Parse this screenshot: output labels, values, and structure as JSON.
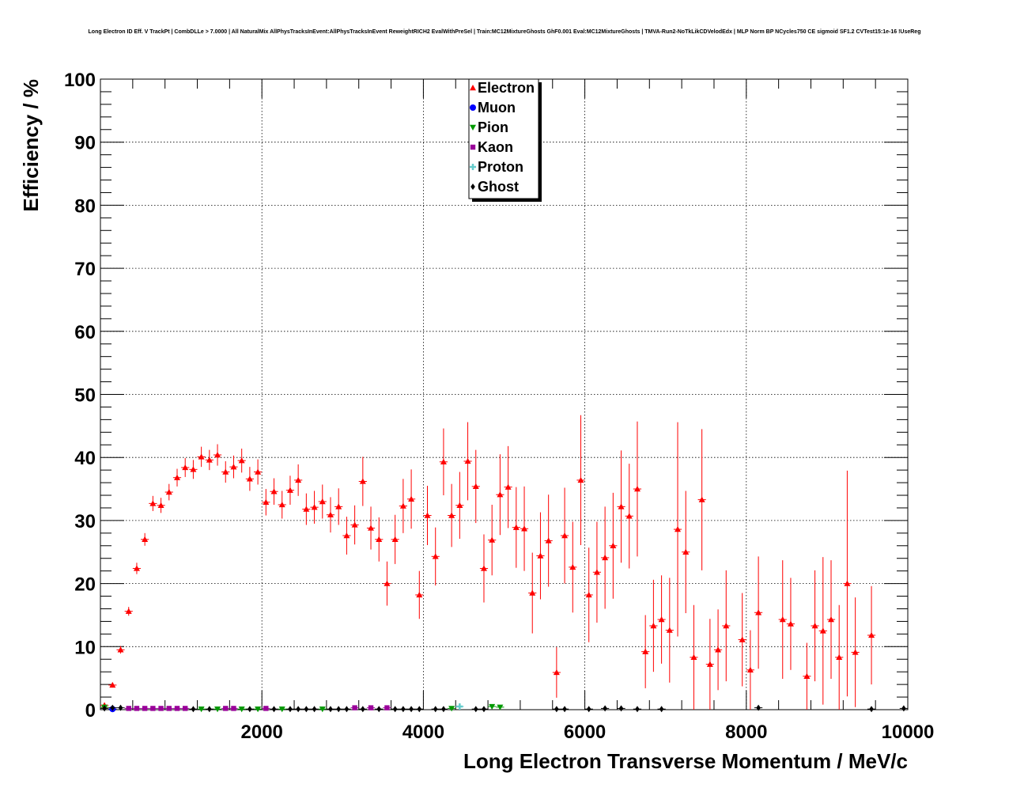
{
  "chart_data": {
    "type": "scatter",
    "title": "Long Electron ID Eff. V TrackPt | CombDLLe > 7.0000 | All NaturalMix AllPhysTracksInEvent:AllPhysTracksInEvent ReweightRICH2 EvalWithPreSel | Train:MC12MixtureGhosts GhF0.001 Eval:MC12MixtureGhosts | TMVA-Run2-NoTkLikCDVelodEdx | MLP Norm BP NCycles750 CE sigmoid SF1.2 CVTest15:1e-16 !UseReg",
    "xlabel": "Long Electron Transverse Momentum / MeV/c",
    "ylabel": "Efficiency / %",
    "xlim": [
      0,
      10000
    ],
    "ylim": [
      0,
      100
    ],
    "xticks": [
      "2000",
      "4000",
      "6000",
      "8000",
      "10000"
    ],
    "yticks": [
      "0",
      "10",
      "20",
      "30",
      "40",
      "50",
      "60",
      "70",
      "80",
      "90",
      "100"
    ],
    "grid": true,
    "legend_position": "top-center",
    "series": [
      {
        "name": "Electron",
        "color": "#ff0000",
        "marker": "triangle-up",
        "points": [
          [
            50,
            0.7,
            0.3
          ],
          [
            150,
            3.9,
            0.4
          ],
          [
            250,
            9.5,
            0.6
          ],
          [
            350,
            15.6,
            0.7
          ],
          [
            450,
            22.4,
            0.9
          ],
          [
            550,
            27.0,
            1.0
          ],
          [
            650,
            32.7,
            1.2
          ],
          [
            750,
            32.4,
            1.2
          ],
          [
            850,
            34.5,
            1.3
          ],
          [
            950,
            36.8,
            1.4
          ],
          [
            1050,
            38.4,
            1.5
          ],
          [
            1150,
            38.1,
            1.5
          ],
          [
            1250,
            40.1,
            1.6
          ],
          [
            1350,
            39.6,
            1.6
          ],
          [
            1450,
            40.4,
            1.7
          ],
          [
            1550,
            37.7,
            1.7
          ],
          [
            1650,
            38.5,
            1.8
          ],
          [
            1750,
            39.5,
            1.9
          ],
          [
            1850,
            36.6,
            1.9
          ],
          [
            1950,
            37.7,
            2.0
          ],
          [
            2050,
            32.9,
            2.1
          ],
          [
            2150,
            34.6,
            2.1
          ],
          [
            2250,
            32.5,
            2.2
          ],
          [
            2350,
            34.8,
            2.3
          ],
          [
            2450,
            36.4,
            2.5
          ],
          [
            2550,
            31.8,
            2.5
          ],
          [
            2650,
            32.1,
            2.6
          ],
          [
            2750,
            33.0,
            2.7
          ],
          [
            2850,
            30.9,
            2.8
          ],
          [
            2950,
            32.2,
            2.9
          ],
          [
            3050,
            27.6,
            3.0
          ],
          [
            3150,
            29.3,
            3.1
          ],
          [
            3250,
            36.2,
            3.9
          ],
          [
            3350,
            28.8,
            3.4
          ],
          [
            3450,
            27.0,
            3.5
          ],
          [
            3550,
            20.0,
            3.5
          ],
          [
            3650,
            27.0,
            3.9
          ],
          [
            3750,
            32.3,
            4.3
          ],
          [
            3850,
            33.4,
            4.7
          ],
          [
            3950,
            18.2,
            3.8
          ],
          [
            4050,
            30.8,
            4.7
          ],
          [
            4150,
            24.3,
            4.6
          ],
          [
            4250,
            39.3,
            5.3
          ],
          [
            4350,
            30.8,
            5.0
          ],
          [
            4450,
            32.4,
            5.3
          ],
          [
            4550,
            39.4,
            6.2
          ],
          [
            4650,
            35.4,
            5.8
          ],
          [
            4750,
            22.4,
            5.4
          ],
          [
            4850,
            26.9,
            5.6
          ],
          [
            4950,
            34.1,
            6.4
          ],
          [
            5050,
            35.3,
            6.5
          ],
          [
            5150,
            28.9,
            6.4
          ],
          [
            5250,
            28.7,
            6.7
          ],
          [
            5350,
            18.5,
            6.4
          ],
          [
            5450,
            24.4,
            6.9
          ],
          [
            5550,
            26.8,
            7.3
          ],
          [
            5650,
            5.9,
            4.0
          ],
          [
            5750,
            27.6,
            7.6
          ],
          [
            5850,
            22.6,
            7.2
          ],
          [
            5950,
            36.4,
            10.3
          ],
          [
            6050,
            18.2,
            7.5
          ],
          [
            6150,
            21.8,
            8.0
          ],
          [
            6250,
            24.1,
            8.1
          ],
          [
            6350,
            26.0,
            8.4
          ],
          [
            6450,
            32.2,
            8.9
          ],
          [
            6550,
            30.7,
            8.3
          ],
          [
            6650,
            35.0,
            10.7
          ],
          [
            6750,
            9.2,
            5.8
          ],
          [
            6850,
            13.3,
            7.3
          ],
          [
            6950,
            14.3,
            7.0
          ],
          [
            7050,
            12.6,
            8.3
          ],
          [
            7150,
            28.6,
            17.0
          ],
          [
            7250,
            25.0,
            9.7
          ],
          [
            7350,
            8.3,
            8.3
          ],
          [
            7450,
            33.3,
            11.2
          ],
          [
            7550,
            7.2,
            7.2
          ],
          [
            7650,
            9.5,
            6.4
          ],
          [
            7750,
            13.3,
            8.8
          ],
          [
            7950,
            11.1,
            7.4
          ],
          [
            8050,
            6.3,
            6.3
          ],
          [
            8150,
            15.4,
            8.9
          ],
          [
            8450,
            14.3,
            9.4
          ],
          [
            8550,
            13.6,
            7.3
          ],
          [
            8750,
            5.3,
            5.3
          ],
          [
            8850,
            13.3,
            8.8
          ],
          [
            8950,
            12.5,
            11.7
          ],
          [
            9050,
            14.3,
            9.4
          ],
          [
            9150,
            8.3,
            8.3
          ],
          [
            9250,
            20.0,
            17.9
          ],
          [
            9350,
            9.1,
            8.7
          ],
          [
            9550,
            11.8,
            7.8
          ]
        ]
      },
      {
        "name": "Muon",
        "color": "#0000ff",
        "marker": "circle",
        "points": [
          [
            150,
            0.1,
            0
          ]
        ]
      },
      {
        "name": "Pion",
        "color": "#009900",
        "marker": "triangle-down",
        "points": [
          [
            50,
            0.4,
            0.1
          ],
          [
            1250,
            0.1,
            0
          ],
          [
            1450,
            0.1,
            0
          ],
          [
            1750,
            0.1,
            0
          ],
          [
            1950,
            0.1,
            0
          ],
          [
            2250,
            0.1,
            0
          ],
          [
            2750,
            0.1,
            0
          ],
          [
            4350,
            0.2,
            0
          ],
          [
            4850,
            0.5,
            0
          ],
          [
            4950,
            0.4,
            0
          ]
        ]
      },
      {
        "name": "Kaon",
        "color": "#990099",
        "marker": "square",
        "points": [
          [
            350,
            0.2,
            0
          ],
          [
            450,
            0.2,
            0
          ],
          [
            550,
            0.2,
            0
          ],
          [
            650,
            0.2,
            0
          ],
          [
            750,
            0.2,
            0
          ],
          [
            850,
            0.2,
            0
          ],
          [
            950,
            0.2,
            0
          ],
          [
            1050,
            0.2,
            0
          ],
          [
            1550,
            0.2,
            0
          ],
          [
            1650,
            0.2,
            0
          ],
          [
            2050,
            0.2,
            0
          ],
          [
            3150,
            0.3,
            0
          ],
          [
            3350,
            0.3,
            0
          ],
          [
            3550,
            0.3,
            0
          ]
        ]
      },
      {
        "name": "Proton",
        "color": "#66cccc",
        "marker": "cross",
        "points": [
          [
            4450,
            0.5,
            0
          ]
        ]
      },
      {
        "name": "Ghost",
        "color": "#000000",
        "marker": "diamond",
        "points": [
          [
            50,
            0.2,
            0
          ],
          [
            150,
            0.3,
            0
          ],
          [
            250,
            0.3,
            0
          ],
          [
            1150,
            0.1,
            0
          ],
          [
            1350,
            0.1,
            0
          ],
          [
            1850,
            0.1,
            0
          ],
          [
            2150,
            0.1,
            0
          ],
          [
            2350,
            0.1,
            0
          ],
          [
            2450,
            0.1,
            0
          ],
          [
            2550,
            0.1,
            0
          ],
          [
            2650,
            0.1,
            0
          ],
          [
            2850,
            0.1,
            0
          ],
          [
            2950,
            0.1,
            0
          ],
          [
            3050,
            0.1,
            0
          ],
          [
            3250,
            0.1,
            0
          ],
          [
            3450,
            0.1,
            0
          ],
          [
            3650,
            0.1,
            0
          ],
          [
            3750,
            0.1,
            0
          ],
          [
            3850,
            0.1,
            0
          ],
          [
            3950,
            0.1,
            0
          ],
          [
            4150,
            0.1,
            0
          ],
          [
            4250,
            0.1,
            0
          ],
          [
            4650,
            0.1,
            0
          ],
          [
            4750,
            0.1,
            0
          ],
          [
            5650,
            0.1,
            0
          ],
          [
            5750,
            0.1,
            0
          ],
          [
            6050,
            0.1,
            0
          ],
          [
            6250,
            0.2,
            0
          ],
          [
            6450,
            0.2,
            0
          ],
          [
            6650,
            0.1,
            0
          ],
          [
            6950,
            0.1,
            0
          ],
          [
            8150,
            0.3,
            0
          ],
          [
            9550,
            0.1,
            0
          ],
          [
            9950,
            0.2,
            0
          ]
        ]
      }
    ]
  }
}
